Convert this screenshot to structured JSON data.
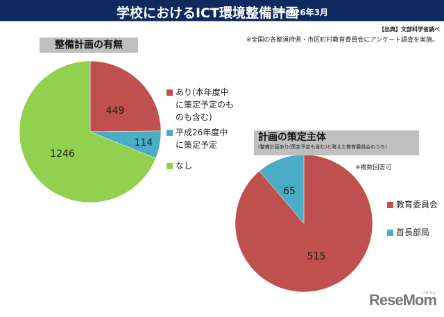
{
  "header": {
    "title": "学校におけるICT環境整備計画",
    "date": "平成26年3月"
  },
  "source": "【出典】文部科学省調べ",
  "note": "※全国の各都道府県・市区町村教育委員会にアンケート調査を実施。",
  "chart1": {
    "title": "整備計画の有無",
    "legend": [
      {
        "label": "あり(本年度中\nに策定予定のも\nのも含む)",
        "color": "#c0504d"
      },
      {
        "label": "平成26年度中\nに策定予定",
        "color": "#4bacc6"
      },
      {
        "label": "なし",
        "color": "#92d050"
      }
    ]
  },
  "chart2": {
    "title": "計画の策定主体",
    "subtitle": "(整備計画あり(策定予定も含む)と答えた教育委員会のうち)",
    "note": "※複数回答可",
    "legend": [
      {
        "label": "教育委員会",
        "color": "#c0504d"
      },
      {
        "label": "首長部局",
        "color": "#4bacc6"
      }
    ]
  },
  "chart_data": [
    {
      "type": "pie",
      "title": "整備計画の有無",
      "categories": [
        "あり(本年度中に策定予定のものも含む)",
        "平成26年度中に策定予定",
        "なし"
      ],
      "values": [
        449,
        114,
        1246
      ],
      "colors": [
        "#c0504d",
        "#4bacc6",
        "#92d050"
      ],
      "labels": [
        "449",
        "114",
        "1246"
      ],
      "legend_position": "right"
    },
    {
      "type": "pie",
      "title": "計画の策定主体",
      "subtitle": "(整備計画あり(策定予定も含む)と答えた教育委員会のうち)",
      "categories": [
        "教育委員会",
        "首長部局"
      ],
      "values": [
        515,
        65
      ],
      "colors": [
        "#c0504d",
        "#4bacc6"
      ],
      "labels": [
        "515",
        "65"
      ],
      "annotation": "※複数回答可",
      "legend_position": "right"
    }
  ],
  "logo": {
    "text": "ReseMom",
    "small": "リセマム"
  }
}
